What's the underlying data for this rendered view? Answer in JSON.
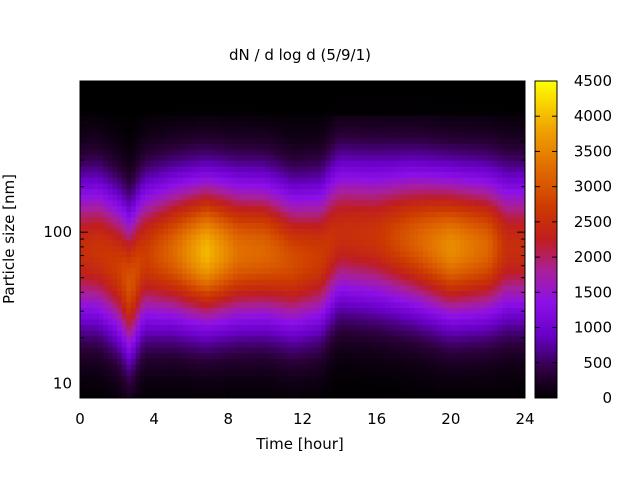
{
  "chart_data": {
    "type": "heatmap",
    "title": "dN / d log d (5/9/1)",
    "xlabel": "Time [hour]",
    "ylabel": "Particle size [nm]",
    "x_range": [
      0,
      24
    ],
    "x_ticks": [
      0,
      4,
      8,
      12,
      16,
      20,
      24
    ],
    "y_scale": "log",
    "y_range_nm": [
      8,
      1000
    ],
    "y_tick_labels": [
      "10",
      "100"
    ],
    "y_tick_values": [
      10,
      100
    ],
    "color_range": [
      0,
      4500
    ],
    "colorbar_ticks": [
      0,
      500,
      1000,
      1500,
      2000,
      2500,
      3000,
      3500,
      4000,
      4500
    ],
    "colormap": "gnuplot (black-purple-red-orange-yellow)",
    "mode_profile": [
      {
        "time": 0.0,
        "peak_nm": 75,
        "peak_value": 2500
      },
      {
        "time": 1.0,
        "peak_nm": 75,
        "peak_value": 2600
      },
      {
        "time": 2.0,
        "peak_nm": 60,
        "peak_value": 2700
      },
      {
        "time": 2.7,
        "peak_nm": 45,
        "peak_value": 3000
      },
      {
        "time": 3.5,
        "peak_nm": 70,
        "peak_value": 2700
      },
      {
        "time": 5.0,
        "peak_nm": 75,
        "peak_value": 3200
      },
      {
        "time": 6.8,
        "peak_nm": 75,
        "peak_value": 4000
      },
      {
        "time": 8.5,
        "peak_nm": 75,
        "peak_value": 3300
      },
      {
        "time": 10.0,
        "peak_nm": 75,
        "peak_value": 3200
      },
      {
        "time": 11.5,
        "peak_nm": 65,
        "peak_value": 2900
      },
      {
        "time": 13.0,
        "peak_nm": 70,
        "peak_value": 2700
      },
      {
        "time": 14.0,
        "peak_nm": 100,
        "peak_value": 2500
      },
      {
        "time": 16.0,
        "peak_nm": 95,
        "peak_value": 2600
      },
      {
        "time": 18.0,
        "peak_nm": 90,
        "peak_value": 3100
      },
      {
        "time": 20.0,
        "peak_nm": 80,
        "peak_value": 3600
      },
      {
        "time": 22.0,
        "peak_nm": 80,
        "peak_value": 3200
      },
      {
        "time": 23.0,
        "peak_nm": 80,
        "peak_value": 2500
      }
    ]
  }
}
